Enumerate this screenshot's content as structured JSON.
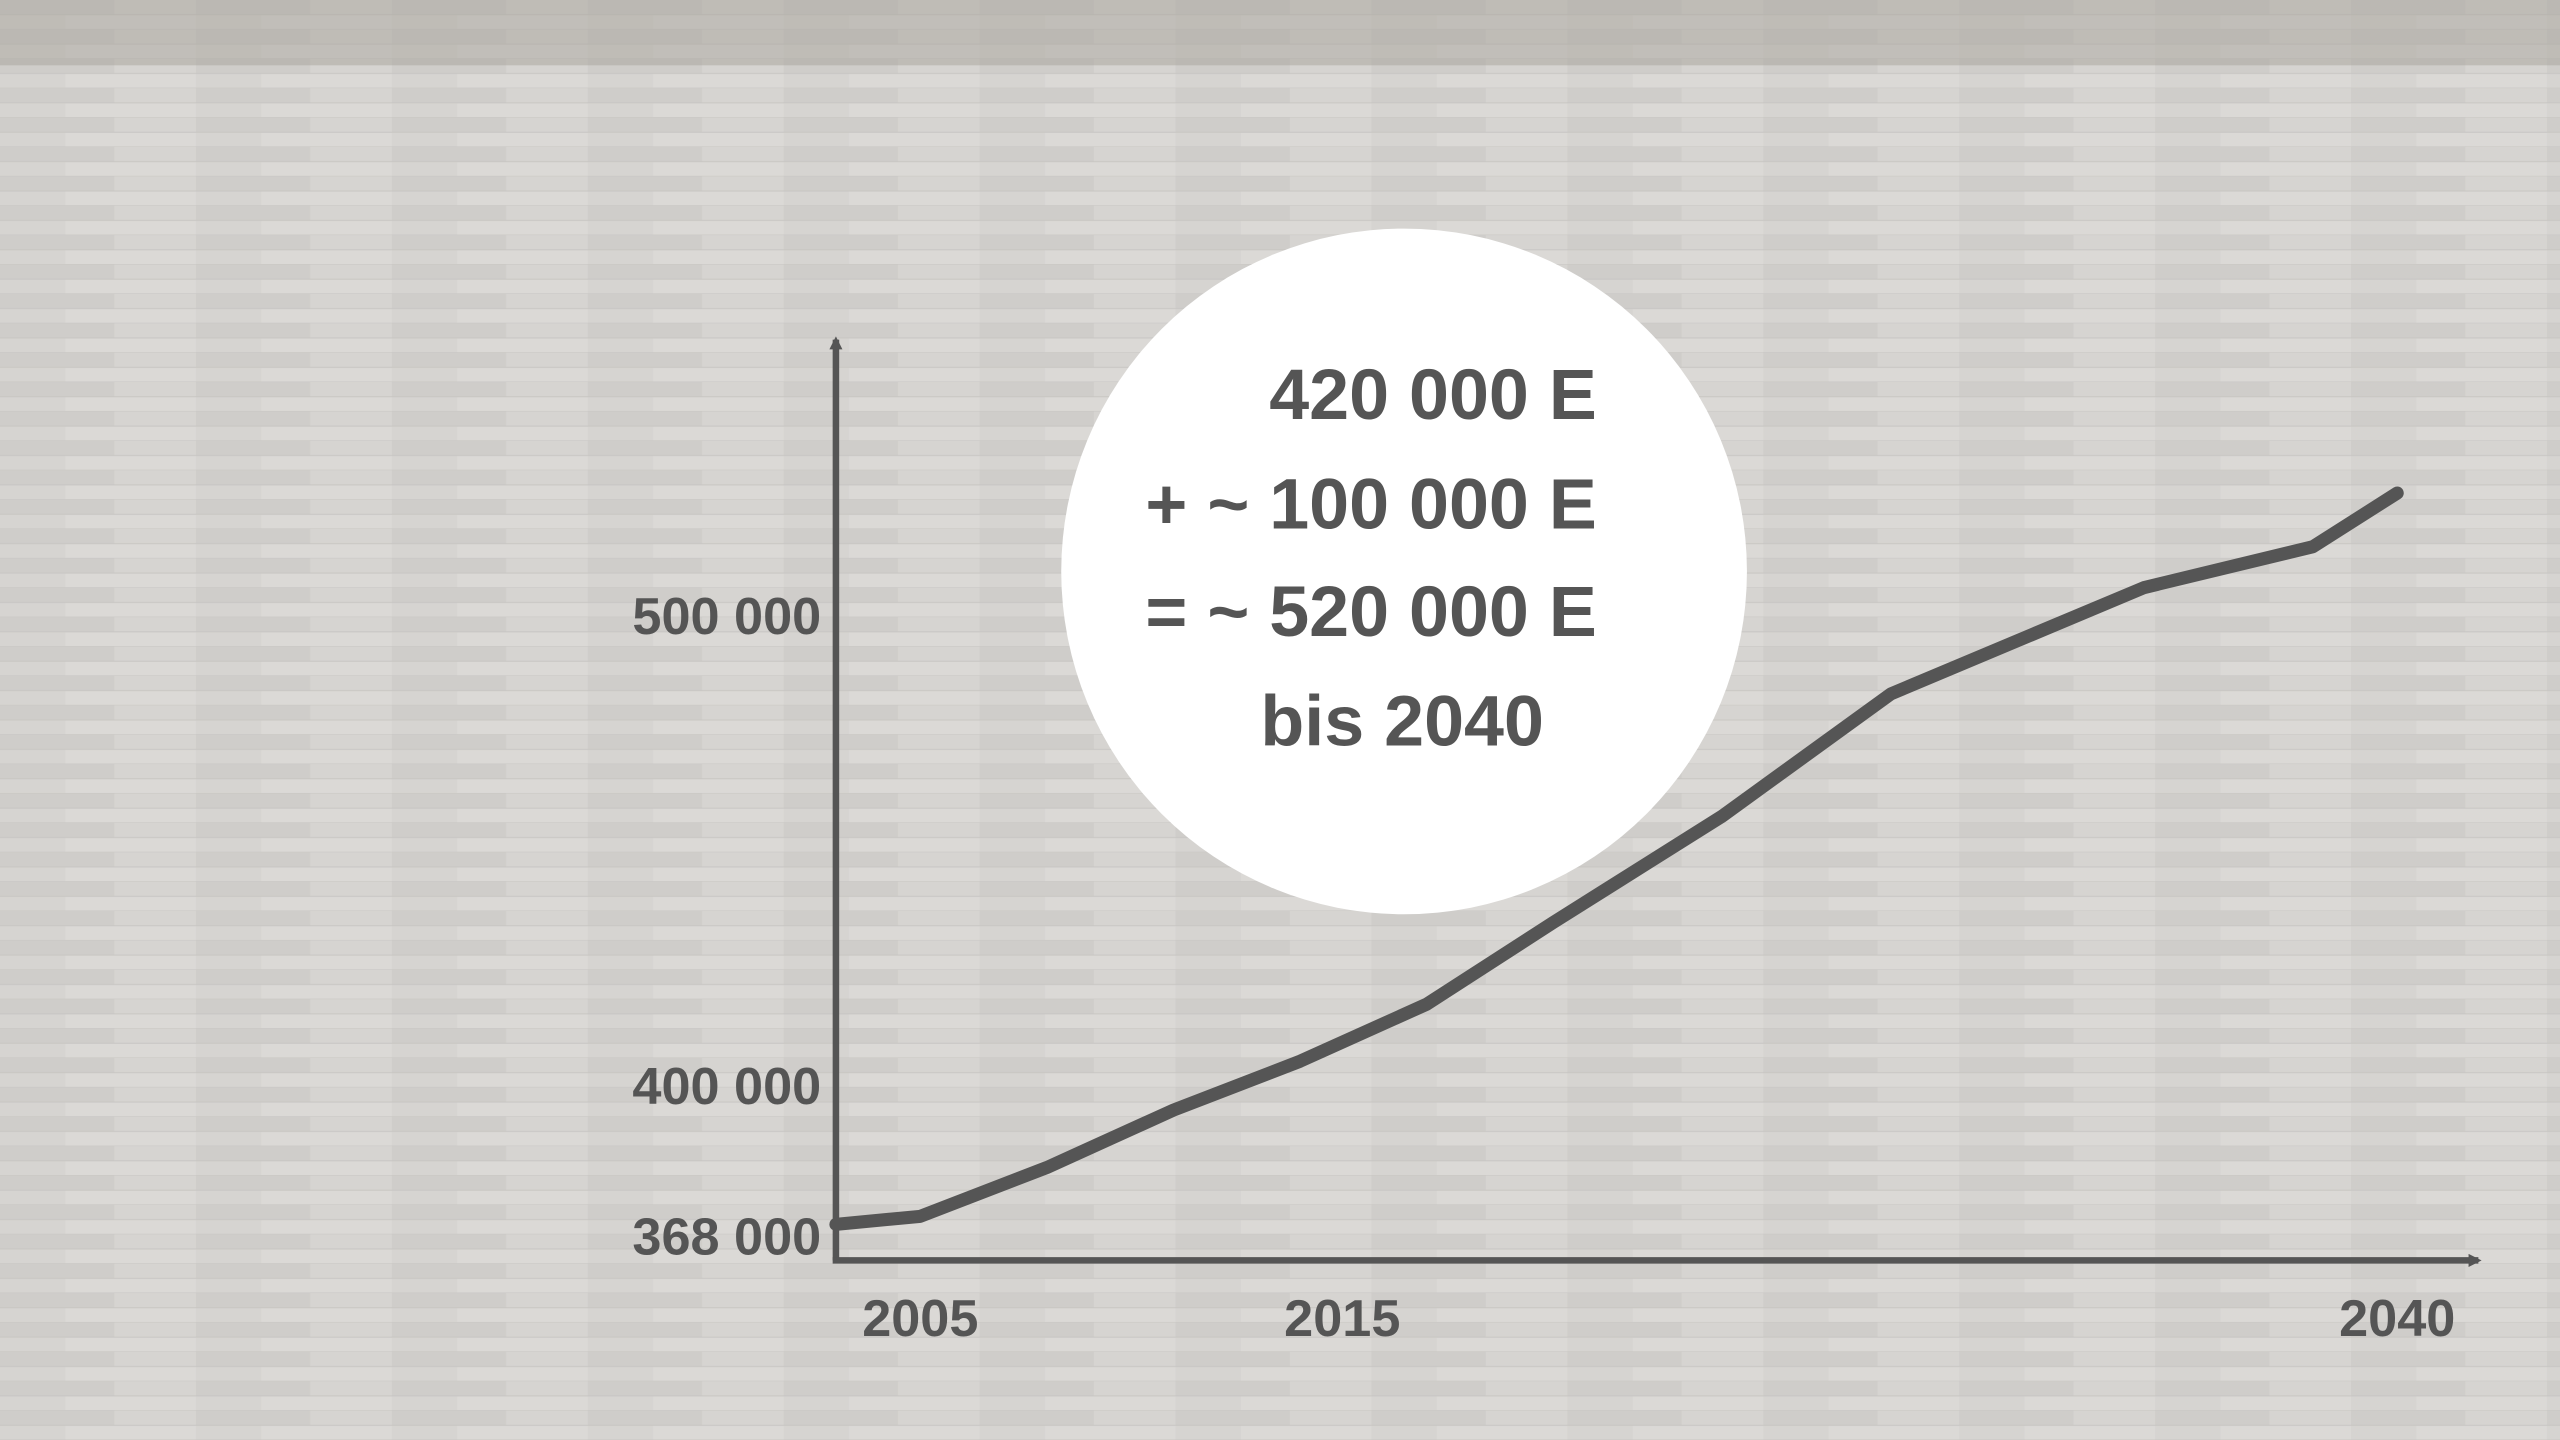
{
  "chart_data": {
    "type": "line",
    "x": [
      2003,
      2005,
      2008,
      2011,
      2014,
      2017,
      2020,
      2024,
      2028,
      2034,
      2038,
      2040
    ],
    "values": [
      371500,
      373200,
      383600,
      395800,
      406200,
      418300,
      435700,
      458300,
      484300,
      506900,
      515600,
      527000
    ],
    "color": "#555555",
    "xlim": [
      2003,
      2042
    ],
    "xticks": [
      2005,
      2015,
      2040
    ],
    "ylim": [
      368000,
      560000
    ],
    "yticks": [
      {
        "value": 368000,
        "label": "368 000"
      },
      {
        "value": 400000,
        "label": "400 000"
      },
      {
        "value": 500000,
        "label": "500 000"
      }
    ],
    "grid": false,
    "annotations": [
      "420 000 E",
      "+ ~ 100 000 E",
      "= ~ 520 000 E",
      "bis 2040"
    ]
  }
}
